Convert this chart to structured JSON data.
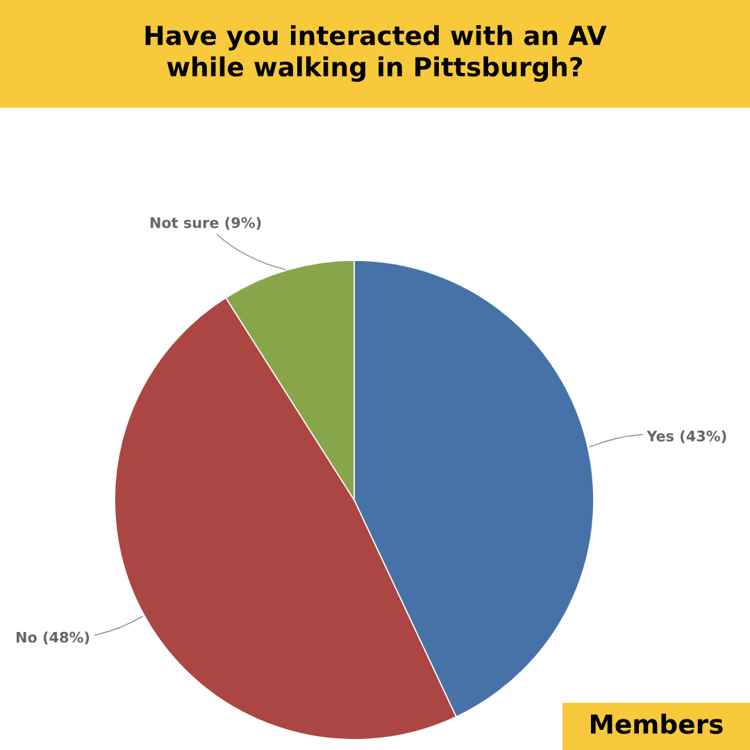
{
  "chart_data": {
    "type": "pie",
    "title": "Have you interacted with an AV\nwhile walking in Pittsburgh?",
    "categories": [
      "Yes (43%)",
      "No (48%)",
      "Not sure (9%)"
    ],
    "values": [
      43,
      48,
      9
    ],
    "colors": [
      "#4672a8",
      "#ab4642",
      "#89a54a"
    ],
    "annotations": [
      "Members"
    ]
  }
}
